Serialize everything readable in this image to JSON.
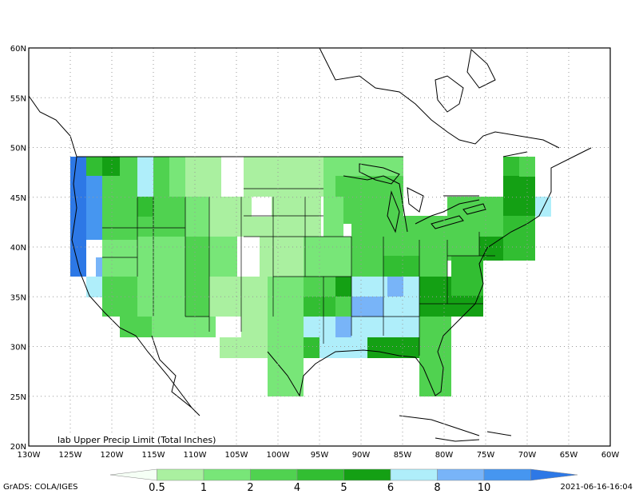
{
  "map": {
    "title": "lab Upper Precip Limit (Total Inches)",
    "lat_labels": [
      "20N",
      "25N",
      "30N",
      "35N",
      "40N",
      "45N",
      "50N",
      "55N",
      "60N"
    ],
    "lon_labels": [
      "130W",
      "125W",
      "120W",
      "115W",
      "110W",
      "105W",
      "100W",
      "95W",
      "90W",
      "85W",
      "80W",
      "75W",
      "70W",
      "65W",
      "60W"
    ],
    "lat_range": [
      20,
      60
    ],
    "lon_range": [
      -130,
      -60
    ],
    "grid": true
  },
  "colorbar": {
    "labels": [
      "0.5",
      "1",
      "2",
      "4",
      "5",
      "6",
      "8",
      "10"
    ],
    "colors": [
      "#f5fff5",
      "#aaf0a0",
      "#78e678",
      "#50d250",
      "#32be32",
      "#14a014",
      "#afeefa",
      "#78b4f8",
      "#4696f0",
      "#2d78e6"
    ]
  },
  "footer": {
    "left": "GrADS: COLA/IGES",
    "right": "2021-06-16-16:04"
  }
}
